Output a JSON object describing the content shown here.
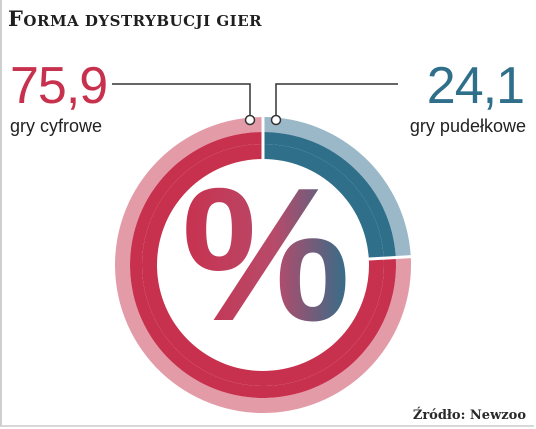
{
  "title": "Forma dystrybucji gier",
  "source": "Źródło: Newzoo",
  "colors": {
    "digital": "#c8314e",
    "digital_light": "#e0909d",
    "boxed": "#2f6f8a",
    "boxed_light": "#8fb0c2"
  },
  "chart_data": {
    "type": "pie",
    "variant": "donut",
    "center_symbol": "%",
    "slices": [
      {
        "label": "gry cyfrowe",
        "value": 75.9,
        "display": "75,9"
      },
      {
        "label": "gry pudełkowe",
        "value": 24.1,
        "display": "24,1"
      }
    ]
  }
}
